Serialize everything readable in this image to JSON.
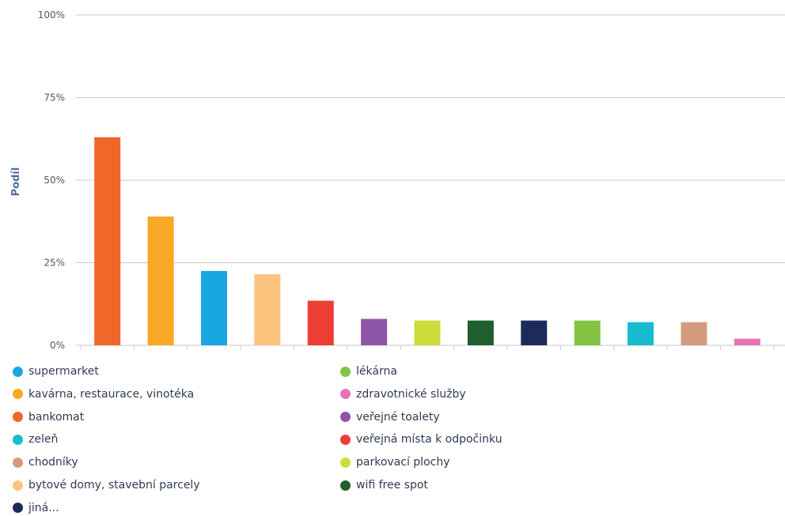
{
  "chart_data": {
    "type": "bar",
    "ylabel": "Podíl",
    "xlabel": "",
    "title": "",
    "ylim": [
      0,
      100
    ],
    "yticks": [
      "0%",
      "25%",
      "50%",
      "75%",
      "100%"
    ],
    "ytick_values": [
      0,
      25,
      50,
      75,
      100
    ],
    "grid": true,
    "legend_position": "bottom",
    "categories": [
      "bankomat",
      "kavárna, restaurace, vinotéka",
      "supermarket",
      "bytové domy, stavební parcely",
      "veřejná místa k odpočinku",
      "veřejné toalety",
      "parkovací plochy",
      "wifi free spot",
      "jiná...",
      "lékárna",
      "zeleň",
      "chodníky",
      "zdravotnické služby"
    ],
    "values": [
      63,
      39,
      22.5,
      21.5,
      13.5,
      8,
      7.5,
      7.5,
      7.5,
      7.5,
      7,
      7,
      2
    ],
    "colors": [
      "#f0672a",
      "#f9a825",
      "#1aa7e0",
      "#fcc47e",
      "#ed3e34",
      "#8e55a8",
      "#cddc39",
      "#1f5e2e",
      "#1d2b5c",
      "#82c341",
      "#17bcd1",
      "#d39b7d",
      "#e774b3"
    ]
  },
  "legend": [
    {
      "label": "supermarket",
      "color": "#1aa7e0"
    },
    {
      "label": "kavárna, restaurace, vinotéka",
      "color": "#f9a825"
    },
    {
      "label": "bankomat",
      "color": "#f0672a"
    },
    {
      "label": "zeleň",
      "color": "#17bcd1"
    },
    {
      "label": "chodníky",
      "color": "#d39b7d"
    },
    {
      "label": "bytové domy, stavební parcely",
      "color": "#fcc47e"
    },
    {
      "label": "jiná...",
      "color": "#1d2b5c"
    },
    {
      "label": "lékárna",
      "color": "#82c341"
    },
    {
      "label": "zdravotnické služby",
      "color": "#e774b3"
    },
    {
      "label": "veřejné toalety",
      "color": "#8e55a8"
    },
    {
      "label": "veřejná místa k odpočinku",
      "color": "#ed3e34"
    },
    {
      "label": "parkovací plochy",
      "color": "#cddc39"
    },
    {
      "label": "wifi free spot",
      "color": "#1f5e2e"
    }
  ]
}
